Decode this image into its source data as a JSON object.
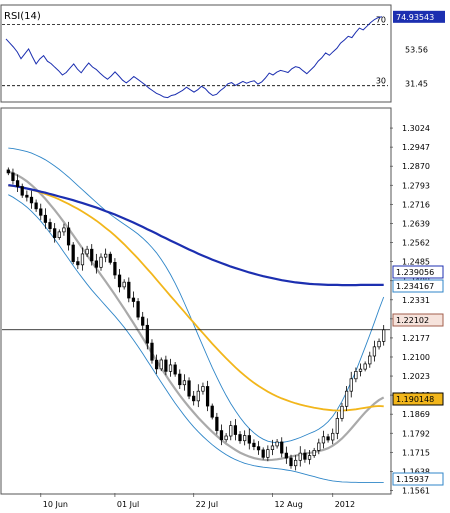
{
  "chart_data": [
    {
      "type": "line",
      "panel": "indicator",
      "title": "RSI(14)",
      "ylim": [
        20,
        82
      ],
      "levels": [
        30,
        70
      ],
      "level_labels": [
        "30",
        "70"
      ],
      "tick_labels": [
        "53.56",
        "31.45"
      ],
      "tick_values": [
        53.56,
        31.45
      ],
      "current_value": 74.93543,
      "current_label": "74.93543",
      "series": [
        {
          "color": "#1c2fb0",
          "values": [
            60.5,
            57.8,
            55.2,
            52,
            47.6,
            50.8,
            54,
            49,
            44.2,
            47.4,
            49.6,
            46,
            44.4,
            42,
            39.8,
            37,
            38.6,
            41.4,
            44.2,
            40.8,
            38.4,
            41.8,
            44.8,
            42.2,
            40.6,
            38.2,
            36,
            34.2,
            36.4,
            39,
            36.4,
            33.6,
            31.8,
            33.8,
            36,
            34.2,
            32.4,
            30.6,
            28.4,
            26.8,
            25,
            24,
            22.6,
            22.2,
            23.6,
            24.2,
            25.6,
            27,
            29,
            27.4,
            25.8,
            27.4,
            29.6,
            28,
            25.4,
            23.6,
            24.4,
            26.8,
            28.6,
            31.2,
            32,
            30.2,
            31.4,
            32.8,
            31.6,
            32.6,
            33.2,
            31,
            32.4,
            35,
            38.2,
            37,
            38.8,
            40,
            39.4,
            38.6,
            41,
            42.4,
            41.8,
            39.8,
            37.8,
            40.2,
            42.6,
            46,
            48.2,
            51.4,
            49.8,
            52.2,
            54.4,
            57.8,
            59.8,
            62.2,
            61.4,
            64.8,
            67.6,
            66.4,
            68.8,
            71.2,
            73.2,
            74.4,
            74.94
          ]
        }
      ]
    },
    {
      "type": "candlestick",
      "panel": "price",
      "ylim": [
        1.1551,
        1.3101
      ],
      "ytick_labels": [
        "1.3024",
        "1.2947",
        "1.2870",
        "1.2793",
        "1.2716",
        "1.2639",
        "1.2562",
        "1.2485",
        "1.2408",
        "1.2331",
        "1.2254",
        "1.2177",
        "1.2100",
        "1.2023",
        "1.1946",
        "1.1869",
        "1.1792",
        "1.1715",
        "1.1638",
        "1.1561"
      ],
      "ytick_values": [
        1.3024,
        1.2947,
        1.287,
        1.2793,
        1.2716,
        1.2639,
        1.2562,
        1.2485,
        1.2408,
        1.2331,
        1.2254,
        1.2177,
        1.21,
        1.2023,
        1.1946,
        1.1869,
        1.1792,
        1.1715,
        1.1638,
        1.1561
      ],
      "xtick_labels": [
        "10 Jun",
        "01 Jul",
        "22 Jul",
        "12 Aug",
        "2012"
      ],
      "xtick_index": [
        7,
        23,
        40,
        57,
        70
      ],
      "crosshair_value": 1.221,
      "closes": [
        1.2843,
        1.2812,
        1.2788,
        1.2753,
        1.2745,
        1.2722,
        1.2698,
        1.2672,
        1.2643,
        1.2618,
        1.2582,
        1.2605,
        1.2621,
        1.2552,
        1.2485,
        1.2472,
        1.2516,
        1.2535,
        1.2488,
        1.2462,
        1.2503,
        1.2515,
        1.2482,
        1.2431,
        1.2383,
        1.2402,
        1.2338,
        1.2324,
        1.2261,
        1.2228,
        1.2156,
        1.2087,
        1.2052,
        1.2088,
        1.2042,
        1.2068,
        1.2031,
        1.1988,
        1.2004,
        1.1942,
        1.1923,
        1.1962,
        1.1981,
        1.1902,
        1.1857,
        1.1803,
        1.1766,
        1.1781,
        1.1823,
        1.1787,
        1.1762,
        1.1783,
        1.1752,
        1.1738,
        1.1725,
        1.1695,
        1.1726,
        1.1741,
        1.1757,
        1.1712,
        1.1692,
        1.1661,
        1.1683,
        1.1712,
        1.1687,
        1.1702,
        1.1723,
        1.1753,
        1.1778,
        1.1765,
        1.1792,
        1.1852,
        1.1901,
        1.1962,
        1.2012,
        1.2042,
        1.2051,
        1.2072,
        1.2104,
        1.2141,
        1.2163,
        1.221
      ],
      "series": [
        {
          "name": "1.239056",
          "color": "#1c2fb0",
          "values": [
            1.2794,
            1.2791,
            1.2788,
            1.2784,
            1.278,
            1.2776,
            1.2772,
            1.2767,
            1.2763,
            1.2758,
            1.2753,
            1.2748,
            1.2743,
            1.2738,
            1.2733,
            1.2727,
            1.2721,
            1.2715,
            1.2709,
            1.2703,
            1.2696,
            1.2689,
            1.2682,
            1.2675,
            1.2667,
            1.2659,
            1.2651,
            1.2643,
            1.2634,
            1.2625,
            1.2616,
            1.2607,
            1.2598,
            1.2588,
            1.2579,
            1.257,
            1.2561,
            1.2552,
            1.2543,
            1.2534,
            1.2526,
            1.2517,
            1.2509,
            1.2501,
            1.2493,
            1.2486,
            1.2479,
            1.2472,
            1.2465,
            1.2459,
            1.2453,
            1.2447,
            1.2441,
            1.2436,
            1.2431,
            1.2426,
            1.2422,
            1.2418,
            1.2414,
            1.241,
            1.2407,
            1.2404,
            1.2401,
            1.2399,
            1.2397,
            1.2395,
            1.2394,
            1.2393,
            1.2392,
            1.2391,
            1.2391,
            1.2391,
            1.239,
            1.239,
            1.239,
            1.239,
            1.2391,
            1.2391,
            1.2391,
            1.2391,
            1.2391,
            1.2391
          ]
        },
        {
          "name": "1.190148",
          "color": "#f2b61b",
          "values": [
            1.2792,
            1.279,
            1.2788,
            1.2784,
            1.278,
            1.2775,
            1.277,
            1.2764,
            1.2758,
            1.2751,
            1.2744,
            1.2736,
            1.2727,
            1.2718,
            1.2708,
            1.2698,
            1.2687,
            1.2675,
            1.2663,
            1.265,
            1.2636,
            1.2621,
            1.2606,
            1.259,
            1.2573,
            1.2555,
            1.2536,
            1.2517,
            1.2497,
            1.2476,
            1.2455,
            1.2434,
            1.2412,
            1.239,
            1.2368,
            1.2346,
            1.2325,
            1.2303,
            1.2282,
            1.226,
            1.2239,
            1.2217,
            1.2196,
            1.2175,
            1.2154,
            1.2134,
            1.2114,
            1.2095,
            1.2076,
            1.2058,
            1.2041,
            1.2025,
            1.201,
            1.1996,
            1.1983,
            1.1971,
            1.196,
            1.195,
            1.1941,
            1.1933,
            1.1926,
            1.1919,
            1.1913,
            1.1908,
            1.1903,
            1.1899,
            1.1895,
            1.1892,
            1.1889,
            1.1887,
            1.1885,
            1.1884,
            1.1884,
            1.1885,
            1.1887,
            1.1889,
            1.1892,
            1.1895,
            1.1898,
            1.1901,
            1.1902,
            1.1901
          ]
        },
        {
          "name": "1.234167",
          "color": "#2f86c8",
          "values": [
            1.2943,
            1.2941,
            1.2938,
            1.2934,
            1.2929,
            1.2923,
            1.2915,
            1.2906,
            1.2896,
            1.2884,
            1.2871,
            1.2857,
            1.2842,
            1.2826,
            1.2809,
            1.2792,
            1.2775,
            1.2758,
            1.2741,
            1.2724,
            1.2707,
            1.2691,
            1.2676,
            1.2662,
            1.2649,
            1.2636,
            1.2623,
            1.261,
            1.2596,
            1.258,
            1.2562,
            1.2542,
            1.252,
            1.2494,
            1.2465,
            1.2433,
            1.2398,
            1.2359,
            1.2318,
            1.2275,
            1.2231,
            1.2187,
            1.2143,
            1.21,
            1.2058,
            1.2018,
            1.198,
            1.1945,
            1.1912,
            1.1883,
            1.1856,
            1.1832,
            1.1811,
            1.1794,
            1.1779,
            1.1768,
            1.176,
            1.1756,
            1.1754,
            1.1755,
            1.1758,
            1.1762,
            1.1768,
            1.1775,
            1.1783,
            1.1791,
            1.1799,
            1.1809,
            1.1822,
            1.1839,
            1.186,
            1.1888,
            1.1921,
            1.1959,
            1.2,
            1.2044,
            1.2091,
            1.2139,
            1.2189,
            1.224,
            1.2292,
            1.2342
          ]
        },
        {
          "name": "1.15937",
          "color": "#2f86c8",
          "values": [
            1.2755,
            1.2745,
            1.2733,
            1.272,
            1.2705,
            1.2688,
            1.2669,
            1.2648,
            1.2625,
            1.2601,
            1.2576,
            1.255,
            1.2523,
            1.2496,
            1.2469,
            1.2443,
            1.2418,
            1.2394,
            1.2371,
            1.2349,
            1.2328,
            1.2307,
            1.2286,
            1.2265,
            1.2243,
            1.222,
            1.2195,
            1.2169,
            1.2142,
            1.2114,
            1.2085,
            1.2056,
            1.2027,
            1.1998,
            1.1969,
            1.1941,
            1.1914,
            1.1888,
            1.1863,
            1.184,
            1.1818,
            1.1798,
            1.1779,
            1.1762,
            1.1746,
            1.1731,
            1.1718,
            1.1706,
            1.1695,
            1.1686,
            1.1678,
            1.1671,
            1.1666,
            1.1661,
            1.1658,
            1.1655,
            1.1653,
            1.1651,
            1.1649,
            1.1647,
            1.1644,
            1.1641,
            1.1637,
            1.1632,
            1.1627,
            1.1622,
            1.1617,
            1.1612,
            1.1607,
            1.1603,
            1.16,
            1.1598,
            1.1596,
            1.1595,
            1.1594,
            1.1594,
            1.1593,
            1.1593,
            1.1593,
            1.1593,
            1.1593,
            1.1593
          ]
        },
        {
          "name": "1.22102",
          "color": "#aaaaaa",
          "values": [
            1.2849,
            1.2842,
            1.2833,
            1.2822,
            1.2809,
            1.2794,
            1.2777,
            1.2758,
            1.2738,
            1.2716,
            1.2693,
            1.2669,
            1.2644,
            1.2618,
            1.2592,
            1.2565,
            1.2538,
            1.2511,
            1.2484,
            1.2457,
            1.2431,
            1.2405,
            1.2378,
            1.2351,
            1.2323,
            1.2295,
            1.2266,
            1.2237,
            1.2207,
            1.2177,
            1.2146,
            1.2115,
            1.2085,
            1.2055,
            1.2026,
            1.1998,
            1.1971,
            1.1945,
            1.1921,
            1.1898,
            1.1876,
            1.1855,
            1.1835,
            1.1816,
            1.1798,
            1.1781,
            1.1765,
            1.175,
            1.1737,
            1.1725,
            1.1714,
            1.1705,
            1.1698,
            1.1692,
            1.1688,
            1.1685,
            1.1684,
            1.1685,
            1.1687,
            1.169,
            1.1694,
            1.1698,
            1.1702,
            1.1706,
            1.171,
            1.1713,
            1.1716,
            1.172,
            1.1725,
            1.1732,
            1.1742,
            1.1755,
            1.1771,
            1.179,
            1.1811,
            1.1833,
            1.1855,
            1.1876,
            1.1895,
            1.1912,
            1.1926,
            1.1937
          ]
        }
      ],
      "tag_colors": [
        "#1c2fb0",
        "#2f86c8",
        "#000000",
        "#f2b61b",
        "#2f86c8"
      ]
    }
  ]
}
